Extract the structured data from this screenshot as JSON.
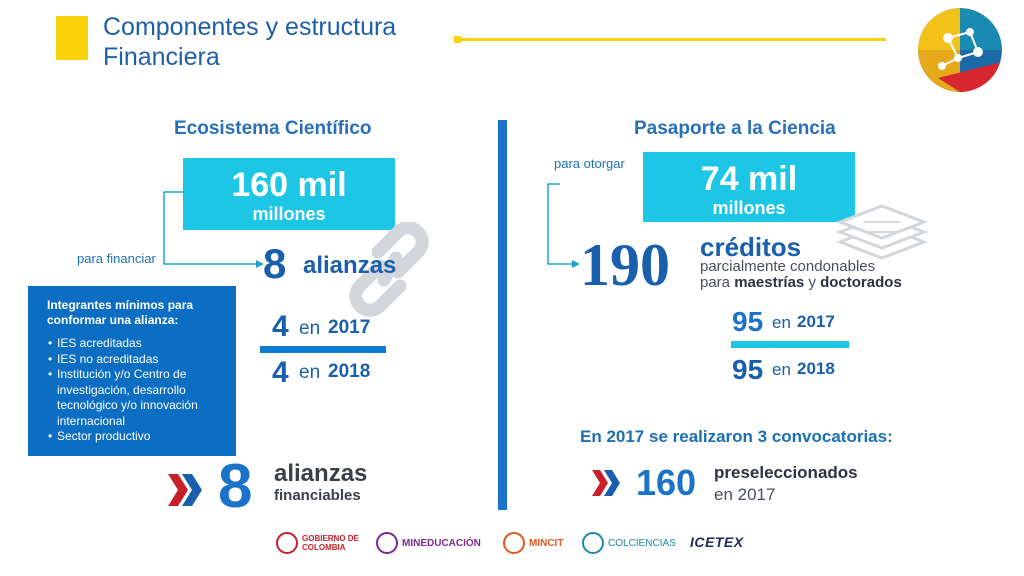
{
  "header": {
    "title": "Componentes y estructura\nFinanciera"
  },
  "left": {
    "section_title": "Ecosistema Científico",
    "amount_value": "160 mil",
    "amount_unit": "millones",
    "arrow_label": "para financiar",
    "alliances_number": "8",
    "alliances_label": "alianzas",
    "year1_count": "4",
    "year1_prefix": "en",
    "year1": "2017",
    "year2_count": "4",
    "year2_prefix": "en",
    "year2": "2018",
    "info_box": {
      "heading": "Integrantes mínimos para conformar una alianza:",
      "items": [
        "IES acreditadas",
        "IES no acreditadas",
        "Institución y/o Centro de investigación, desarrollo tecnológico y/o innovación internacional",
        "Sector productivo"
      ]
    },
    "financiables_number": "8",
    "financiables_label1": "alianzas",
    "financiables_label2": "financiables"
  },
  "right": {
    "section_title": "Pasaporte a la Ciencia",
    "arrow_label": "para otorgar",
    "amount_value": "74 mil",
    "amount_unit": "millones",
    "credits_number": "190",
    "credits_label": "créditos",
    "credits_desc1": "parcialmente condonables",
    "credits_desc2_pre": "para",
    "credits_desc2_b1": "maestrías",
    "credits_desc2_mid": "y",
    "credits_desc2_b2": "doctorados",
    "year1_count": "95",
    "year1_prefix": "en",
    "year1": "2017",
    "year2_count": "95",
    "year2_prefix": "en",
    "year2": "2018",
    "convocatorias": "En 2017 se realizaron 3 convocatorias:",
    "presel_number": "160",
    "presel_label": "preseleccionados",
    "presel_year": "en 2017"
  },
  "footer": {
    "logos": [
      "GOBIERNO DE COLOMBIA",
      "MINEDUCACIÓN",
      "MINCIT",
      "COLCIENCIAS",
      "ICETEX"
    ]
  },
  "colors": {
    "yellow": "#f9d20b",
    "cyan": "#1ec6e6",
    "blue": "#0b6ec2",
    "dark_blue": "#1a5fab",
    "chevron_red": "#c8202b"
  }
}
